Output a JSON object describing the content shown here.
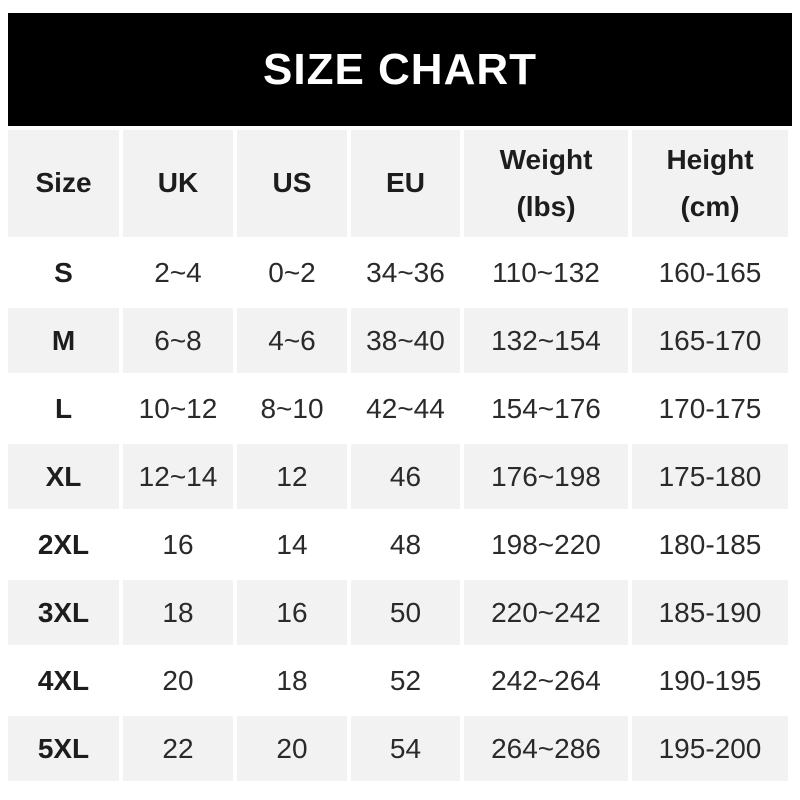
{
  "banner": {
    "title": "SIZE CHART",
    "bg_color": "#000000",
    "text_color": "#ffffff"
  },
  "colors": {
    "stripe": "#f2f2f2",
    "row_alt": "#ffffff",
    "text": "#2a2a2a",
    "bold_text": "#1d1d1d"
  },
  "table": {
    "header": [
      {
        "label": "Size",
        "sub": ""
      },
      {
        "label": "UK",
        "sub": ""
      },
      {
        "label": "US",
        "sub": ""
      },
      {
        "label": "EU",
        "sub": ""
      },
      {
        "label": "Weight",
        "sub": "(lbs)"
      },
      {
        "label": "Height",
        "sub": "(cm)"
      }
    ]
  },
  "chart_data": {
    "type": "table",
    "title": "SIZE CHART",
    "columns": [
      "Size",
      "UK",
      "US",
      "EU",
      "Weight (lbs)",
      "Height (cm)"
    ],
    "rows": [
      [
        "S",
        "2~4",
        "0~2",
        "34~36",
        "110~132",
        "160-165"
      ],
      [
        "M",
        "6~8",
        "4~6",
        "38~40",
        "132~154",
        "165-170"
      ],
      [
        "L",
        "10~12",
        "8~10",
        "42~44",
        "154~176",
        "170-175"
      ],
      [
        "XL",
        "12~14",
        "12",
        "46",
        "176~198",
        "175-180"
      ],
      [
        "2XL",
        "16",
        "14",
        "48",
        "198~220",
        "180-185"
      ],
      [
        "3XL",
        "18",
        "16",
        "50",
        "220~242",
        "185-190"
      ],
      [
        "4XL",
        "20",
        "18",
        "52",
        "242~264",
        "190-195"
      ],
      [
        "5XL",
        "22",
        "20",
        "54",
        "264~286",
        "195-200"
      ]
    ],
    "layout_hints": {
      "striped_rows": "header, M, XL, 3XL, 5XL are gray #f2f2f2; others white",
      "grid": "white gutters between cells"
    }
  }
}
